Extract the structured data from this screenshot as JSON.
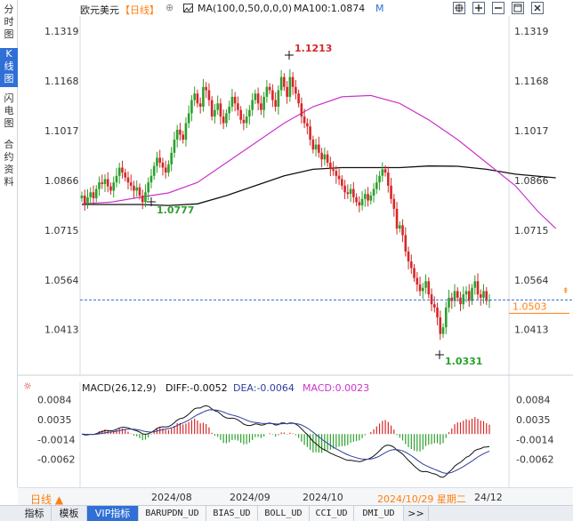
{
  "side_tabs": [
    {
      "label": "分时图"
    },
    {
      "label": "K线图"
    },
    {
      "label": "闪电图"
    },
    {
      "label": "合约资料"
    }
  ],
  "header": {
    "title": "欧元美元",
    "period": "【日线】",
    "period_icon": "pin-icon",
    "ma_label": "MA(100,0,50,0,0,0)",
    "ma_value": "MA100:1.0874",
    "ma_m": "M",
    "toolbar_icons": [
      "crosshair-icon",
      "zoom-in-icon",
      "zoom-out-icon",
      "restore-icon",
      "close-icon"
    ]
  },
  "colors": {
    "up": "#2ca02c",
    "down": "#d62728",
    "ma50": "#cc33cc",
    "ma100": "#111111",
    "diff": "#111111",
    "dea": "#2f3f9f",
    "macd_pos": "#d62728",
    "macd_neg": "#2ca02c",
    "accent": "#ff7f0e",
    "current_line": "#2f6fd6"
  },
  "price_axis": {
    "ticks": [
      "1.1319",
      "1.1168",
      "1.1017",
      "1.0866",
      "1.0715",
      "1.0564",
      "1.0413"
    ],
    "current": "1.0503"
  },
  "annotations": {
    "high": "1.1213",
    "low": "1.0331",
    "prior_low": "1.0777"
  },
  "macd": {
    "label": "MACD(26,12,9)",
    "diff": "DIFF:-0.0052",
    "dea": "DEA:-0.0064",
    "macd": "MACD:0.0023",
    "ticks": [
      "0.0084",
      "0.0035",
      "-0.0014",
      "-0.0062"
    ]
  },
  "x_axis": {
    "period_selector": "日线 ▲",
    "labels": [
      "2024/08",
      "2024/09",
      "2024/10"
    ],
    "cursor_date": "2024/10/29  星期二",
    "cursor_tail": "24/12"
  },
  "bottom_tabs": [
    "指标",
    "模板",
    "VIP指标",
    "BARUPDN_UD",
    "BIAS_UD",
    "BOLL_UD",
    "CCI_UD",
    "DMI_UD",
    ">>"
  ],
  "chart_data": {
    "type": "candlestick",
    "title": "欧元美元",
    "ylim": [
      1.028,
      1.136
    ],
    "series": [
      {
        "name": "MA50",
        "line": [
          [
            0,
            1.0795
          ],
          [
            10,
            1.08
          ],
          [
            20,
            1.0815
          ],
          [
            30,
            1.0828
          ],
          [
            40,
            1.086
          ],
          [
            50,
            1.092
          ],
          [
            60,
            1.098
          ],
          [
            70,
            1.104
          ],
          [
            80,
            1.109
          ],
          [
            90,
            1.112
          ],
          [
            100,
            1.1124
          ],
          [
            110,
            1.11
          ],
          [
            120,
            1.105
          ],
          [
            130,
            1.099
          ],
          [
            140,
            1.092
          ],
          [
            150,
            1.085
          ],
          [
            158,
            1.077
          ],
          [
            164,
            1.072
          ]
        ]
      },
      {
        "name": "MA100",
        "line": [
          [
            0,
            1.0793
          ],
          [
            20,
            1.0793
          ],
          [
            30,
            1.079
          ],
          [
            40,
            1.0795
          ],
          [
            50,
            1.082
          ],
          [
            60,
            1.085
          ],
          [
            70,
            1.088
          ],
          [
            80,
            1.09
          ],
          [
            90,
            1.0905
          ],
          [
            100,
            1.0905
          ],
          [
            110,
            1.0905
          ],
          [
            120,
            1.091
          ],
          [
            130,
            1.0909
          ],
          [
            140,
            1.09
          ],
          [
            150,
            1.0885
          ],
          [
            164,
            1.0874
          ]
        ]
      }
    ],
    "candles_close": [
      1.082,
      1.0795,
      1.0815,
      1.083,
      1.0812,
      1.084,
      1.086,
      1.0855,
      1.087,
      1.0848,
      1.0835,
      1.086,
      1.088,
      1.0905,
      1.089,
      1.0875,
      1.086,
      1.085,
      1.0835,
      1.0845,
      1.082,
      1.08,
      1.083,
      1.086,
      1.088,
      1.091,
      1.0935,
      1.092,
      1.0905,
      1.089,
      1.0915,
      1.095,
      1.099,
      1.102,
      1.1005,
      1.099,
      1.104,
      1.107,
      1.111,
      1.113,
      1.11,
      1.109,
      1.115,
      1.114,
      1.111,
      1.106,
      1.108,
      1.11,
      1.106,
      1.104,
      1.107,
      1.109,
      1.112,
      1.11,
      1.108,
      1.105,
      1.104,
      1.106,
      1.108,
      1.111,
      1.113,
      1.11,
      1.108,
      1.112,
      1.115,
      1.114,
      1.111,
      1.109,
      1.114,
      1.118,
      1.115,
      1.112,
      1.118,
      1.115,
      1.113,
      1.11,
      1.106,
      1.104,
      1.103,
      1.099,
      1.096,
      1.0975,
      1.095,
      1.093,
      1.0945,
      1.092,
      1.09,
      1.0895,
      1.088,
      1.087,
      1.085,
      1.083,
      1.0825,
      1.084,
      1.0815,
      1.08,
      1.079,
      1.081,
      1.0825,
      1.0805,
      1.082,
      1.084,
      1.086,
      1.088,
      1.09,
      1.089,
      1.085,
      1.081,
      1.078,
      1.072,
      1.073,
      1.07,
      1.065,
      1.062,
      1.06,
      1.057,
      1.055,
      1.053,
      1.054,
      1.056,
      1.052,
      1.049,
      1.048,
      1.045,
      1.04,
      1.042,
      1.048,
      1.051,
      1.05,
      1.053,
      1.051,
      1.049,
      1.052,
      1.053,
      1.05,
      1.054,
      1.056,
      1.052,
      1.051,
      1.053,
      1.05,
      1.0503
    ]
  }
}
